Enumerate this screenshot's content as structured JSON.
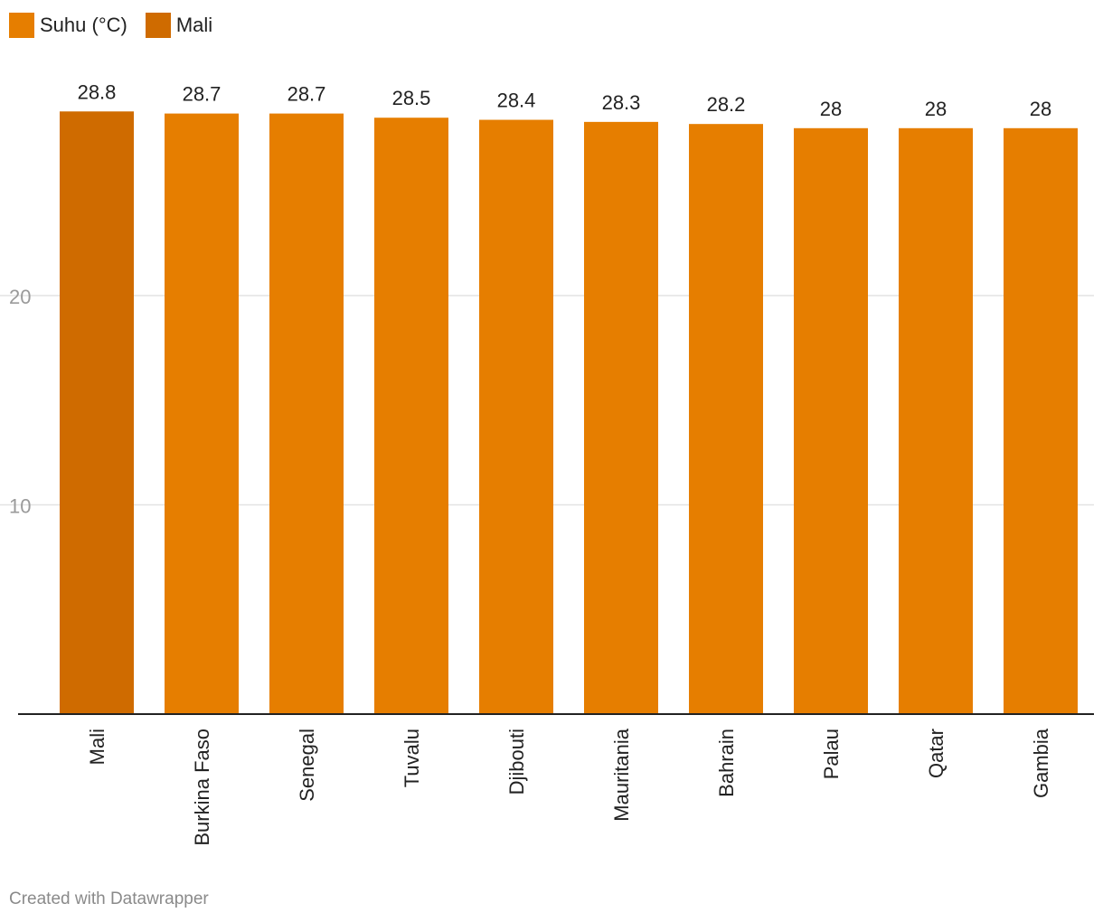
{
  "legend": [
    {
      "label": "Suhu (°C)",
      "color": "#e67e00"
    },
    {
      "label": "Mali",
      "color": "#cf6b00"
    }
  ],
  "footer": {
    "credit": "Created with Datawrapper"
  },
  "colors": {
    "default_bar": "#e67e00",
    "highlight_bar": "#cf6b00",
    "gridline": "#e3e3e3",
    "baseline": "#222222",
    "tick_label": "#9a9a9a",
    "value_label": "#222222"
  },
  "chart_data": {
    "type": "bar",
    "title": "",
    "xlabel": "",
    "ylabel": "",
    "categories": [
      "Mali",
      "Burkina Faso",
      "Senegal",
      "Tuvalu",
      "Djibouti",
      "Mauritania",
      "Bahrain",
      "Palau",
      "Qatar",
      "Gambia"
    ],
    "series": [
      {
        "name": "Suhu (°C)",
        "values": [
          28.8,
          28.7,
          28.7,
          28.5,
          28.4,
          28.3,
          28.2,
          28,
          28,
          28
        ]
      }
    ],
    "value_labels": [
      "28.8",
      "28.7",
      "28.7",
      "28.5",
      "28.4",
      "28.3",
      "28.2",
      "28",
      "28",
      "28"
    ],
    "highlight": "Mali",
    "yticks": [
      {
        "value": 10,
        "label": "10"
      },
      {
        "value": 20,
        "label": "20"
      }
    ],
    "ylim": [
      0,
      30
    ],
    "grid": true,
    "legend_position": "top-left"
  }
}
